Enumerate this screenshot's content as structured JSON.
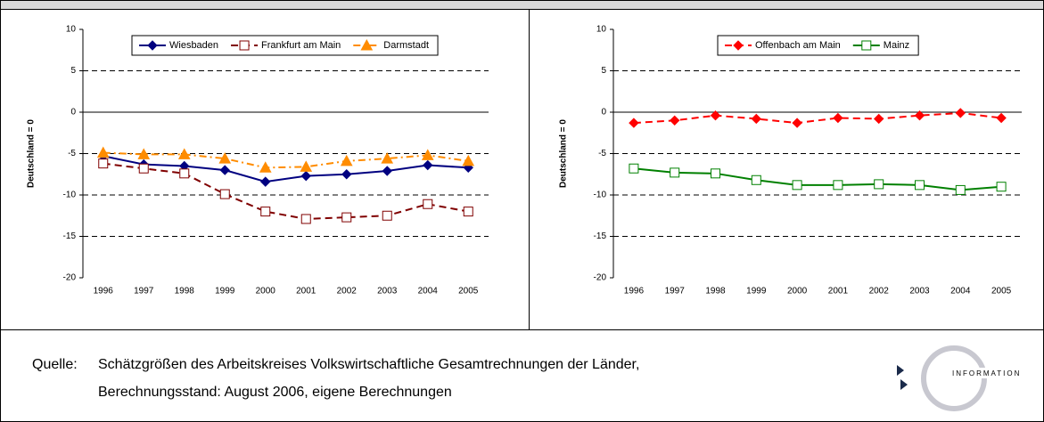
{
  "chart_data": [
    {
      "type": "line",
      "y_label": "Deutschland = 0",
      "categories": [
        "1996",
        "1997",
        "1998",
        "1999",
        "2000",
        "2001",
        "2002",
        "2003",
        "2004",
        "2005"
      ],
      "ylim": [
        -20,
        10
      ],
      "yticks": [
        -20,
        -15,
        -10,
        -5,
        0,
        5,
        10
      ],
      "grid": true,
      "series": [
        {
          "name": "Wiesbaden",
          "color": "#000080",
          "dash": "solid",
          "marker": "diamond",
          "values": [
            -5.3,
            -6.3,
            -6.5,
            -7.0,
            -8.4,
            -7.7,
            -7.5,
            -7.1,
            -6.4,
            -6.7
          ]
        },
        {
          "name": "Frankfurt am Main",
          "color": "#800000",
          "dash": "dashed",
          "marker": "square-open",
          "values": [
            -6.2,
            -6.8,
            -7.4,
            -9.9,
            -12.0,
            -12.9,
            -12.7,
            -12.5,
            -11.1,
            -12.0
          ]
        },
        {
          "name": "Darmstadt",
          "color": "#ff8c00",
          "dash": "dashdot",
          "marker": "triangle",
          "values": [
            -4.9,
            -5.1,
            -5.1,
            -5.6,
            -6.7,
            -6.6,
            -5.9,
            -5.6,
            -5.2,
            -5.9
          ]
        }
      ]
    },
    {
      "type": "line",
      "y_label": "Deutschland = 0",
      "categories": [
        "1996",
        "1997",
        "1998",
        "1999",
        "2000",
        "2001",
        "2002",
        "2003",
        "2004",
        "2005"
      ],
      "ylim": [
        -20,
        10
      ],
      "yticks": [
        -20,
        -15,
        -10,
        -5,
        0,
        5,
        10
      ],
      "grid": true,
      "series": [
        {
          "name": "Offenbach am Main",
          "color": "#ff0000",
          "dash": "dashed",
          "marker": "diamond",
          "values": [
            -1.3,
            -1.0,
            -0.4,
            -0.8,
            -1.3,
            -0.7,
            -0.8,
            -0.4,
            -0.1,
            -0.7
          ]
        },
        {
          "name": "Mainz",
          "color": "#008000",
          "dash": "solid",
          "marker": "square-open",
          "values": [
            -6.8,
            -7.3,
            -7.4,
            -8.2,
            -8.8,
            -8.8,
            -8.7,
            -8.8,
            -9.4,
            -9.0
          ]
        }
      ]
    }
  ],
  "footer": {
    "source_label": "Quelle:",
    "source_lines": [
      "Schätzgrößen des Arbeitskreises Volkswirtschaftliche Gesamtrechnungen der Länder,",
      "Berechnungsstand: August 2006, eigene Berechnungen"
    ]
  },
  "logo": {
    "text": "INFORMATION"
  }
}
